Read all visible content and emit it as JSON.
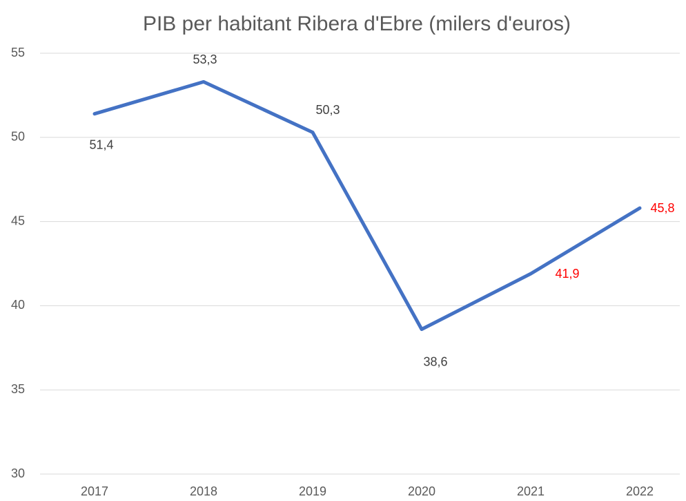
{
  "chart_data": {
    "type": "line",
    "title": "PIB per habitant Ribera d'Ebre (milers d'euros)",
    "categories": [
      "2017",
      "2018",
      "2019",
      "2020",
      "2021",
      "2022"
    ],
    "series": [
      {
        "color": "#4472c4",
        "values": [
          51.4,
          53.3,
          50.3,
          38.6,
          41.9,
          45.8
        ],
        "value_labels": [
          "51,4",
          "53,3",
          "50,3",
          "38,6",
          "41,9",
          "45,8"
        ],
        "value_label_colors": [
          "#404040",
          "#404040",
          "#404040",
          "#404040",
          "#ff0000",
          "#ff0000"
        ]
      }
    ],
    "ylim": [
      30,
      55
    ],
    "yticks": [
      30,
      35,
      40,
      45,
      50,
      55
    ],
    "grid": true
  }
}
